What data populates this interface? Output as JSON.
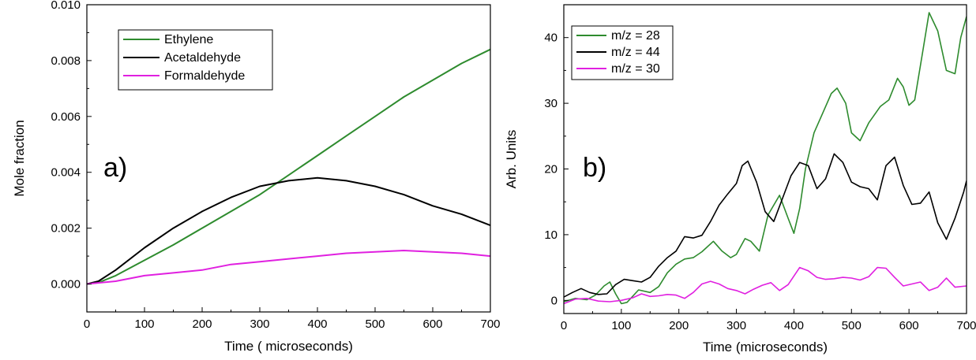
{
  "chart_data": [
    {
      "type": "line",
      "panel_label": "a)",
      "xlabel": "Time ( microseconds)",
      "ylabel": "Mole fraction",
      "xlim": [
        0,
        700
      ],
      "ylim": [
        -0.001,
        0.01
      ],
      "x_ticks": [
        0,
        100,
        200,
        300,
        400,
        500,
        600,
        700
      ],
      "y_ticks": [
        0.0,
        0.002,
        0.004,
        0.006,
        0.008,
        0.01
      ],
      "x_tick_labels": [
        "0",
        "100",
        "200",
        "300",
        "400",
        "500",
        "600",
        "700"
      ],
      "y_tick_labels": [
        "0.000",
        "0.002",
        "0.004",
        "0.006",
        "0.008",
        "0.010"
      ],
      "grid": false,
      "legend_position": "top-left",
      "series": [
        {
          "name": "Ethylene",
          "color": "#2e8b2e",
          "x": [
            0,
            20,
            50,
            100,
            150,
            200,
            250,
            300,
            350,
            400,
            450,
            500,
            550,
            600,
            650,
            700
          ],
          "y": [
            0.0,
            5e-05,
            0.0003,
            0.00085,
            0.0014,
            0.002,
            0.0026,
            0.0032,
            0.0039,
            0.0046,
            0.0053,
            0.006,
            0.0067,
            0.0073,
            0.0079,
            0.0084
          ]
        },
        {
          "name": "Acetaldehyde",
          "color": "#000000",
          "x": [
            0,
            20,
            50,
            100,
            150,
            200,
            250,
            300,
            350,
            400,
            450,
            500,
            550,
            600,
            650,
            700
          ],
          "y": [
            0.0,
            0.0001,
            0.0005,
            0.0013,
            0.002,
            0.0026,
            0.0031,
            0.0035,
            0.0037,
            0.0038,
            0.0037,
            0.0035,
            0.0032,
            0.0028,
            0.0025,
            0.0021
          ]
        },
        {
          "name": "Formaldehyde",
          "color": "#e020e0",
          "x": [
            0,
            50,
            100,
            150,
            200,
            250,
            300,
            350,
            400,
            450,
            500,
            550,
            600,
            650,
            700
          ],
          "y": [
            0.0,
            0.0001,
            0.0003,
            0.0004,
            0.0005,
            0.0007,
            0.0008,
            0.0009,
            0.001,
            0.0011,
            0.00115,
            0.0012,
            0.00115,
            0.0011,
            0.001
          ]
        }
      ]
    },
    {
      "type": "line",
      "panel_label": "b)",
      "xlabel": "Time (microseconds)",
      "ylabel": "Arb. Units",
      "xlim": [
        0,
        700
      ],
      "ylim": [
        -2,
        45
      ],
      "x_ticks": [
        0,
        100,
        200,
        300,
        400,
        500,
        600,
        700
      ],
      "y_ticks": [
        0,
        10,
        20,
        30,
        40
      ],
      "x_tick_labels": [
        "0",
        "100",
        "200",
        "300",
        "400",
        "500",
        "600",
        "700"
      ],
      "y_tick_labels": [
        "0",
        "10",
        "20",
        "30",
        "40"
      ],
      "grid": false,
      "legend_position": "top-left",
      "series": [
        {
          "name": "m/z = 28",
          "color": "#2e8b2e",
          "x": [
            0,
            20,
            40,
            55,
            70,
            80,
            90,
            100,
            110,
            130,
            150,
            165,
            180,
            195,
            210,
            225,
            240,
            260,
            275,
            290,
            300,
            315,
            325,
            340,
            355,
            375,
            390,
            400,
            410,
            420,
            435,
            450,
            465,
            475,
            490,
            500,
            515,
            530,
            550,
            565,
            580,
            590,
            600,
            610,
            625,
            635,
            650,
            665,
            680,
            690,
            700
          ],
          "y": [
            -0.2,
            0.3,
            0.1,
            0.8,
            2.2,
            2.8,
            1.0,
            -0.5,
            -0.3,
            1.6,
            1.2,
            2.1,
            4.2,
            5.5,
            6.3,
            6.5,
            7.4,
            9.0,
            7.5,
            6.5,
            7.0,
            9.4,
            9.0,
            7.5,
            13.0,
            16.0,
            12.5,
            10.2,
            14.0,
            20.0,
            25.5,
            28.5,
            31.5,
            32.3,
            30.0,
            25.5,
            24.3,
            27.0,
            29.5,
            30.5,
            33.8,
            32.5,
            29.7,
            30.5,
            38.5,
            43.8,
            41.0,
            35.0,
            34.5,
            40.0,
            43.2
          ]
        },
        {
          "name": "m/z = 44",
          "color": "#000000",
          "x": [
            0,
            15,
            30,
            45,
            60,
            75,
            90,
            105,
            120,
            135,
            150,
            165,
            180,
            195,
            210,
            225,
            240,
            255,
            270,
            285,
            300,
            310,
            320,
            335,
            350,
            365,
            380,
            395,
            410,
            425,
            440,
            455,
            470,
            485,
            500,
            515,
            530,
            545,
            560,
            575,
            590,
            605,
            620,
            635,
            650,
            665,
            680,
            695,
            700
          ],
          "y": [
            0.5,
            1.2,
            1.8,
            1.2,
            0.9,
            1.0,
            2.4,
            3.2,
            3.0,
            2.8,
            3.5,
            5.2,
            6.5,
            7.5,
            9.7,
            9.5,
            9.9,
            12.0,
            14.5,
            16.2,
            17.8,
            20.5,
            21.2,
            18.0,
            13.5,
            12.0,
            15.5,
            19.0,
            21.0,
            20.5,
            17.0,
            18.5,
            22.3,
            21.0,
            18.0,
            17.3,
            17.0,
            15.3,
            20.5,
            21.8,
            17.5,
            14.6,
            14.8,
            16.5,
            11.8,
            9.3,
            12.5,
            16.5,
            18.2
          ]
        },
        {
          "name": "m/z = 30",
          "color": "#e020e0",
          "x": [
            0,
            20,
            40,
            60,
            80,
            100,
            120,
            135,
            150,
            165,
            180,
            195,
            210,
            225,
            240,
            255,
            270,
            285,
            300,
            315,
            330,
            345,
            360,
            375,
            390,
            410,
            425,
            440,
            455,
            470,
            485,
            500,
            515,
            530,
            545,
            560,
            575,
            590,
            605,
            620,
            635,
            650,
            665,
            680,
            700
          ],
          "y": [
            -0.5,
            0.2,
            0.3,
            -0.1,
            -0.2,
            0.0,
            0.4,
            1.0,
            0.6,
            0.7,
            0.9,
            0.8,
            0.3,
            1.2,
            2.5,
            2.9,
            2.5,
            1.8,
            1.5,
            1.0,
            1.7,
            2.3,
            2.7,
            1.5,
            2.4,
            5.0,
            4.5,
            3.5,
            3.2,
            3.3,
            3.5,
            3.4,
            3.1,
            3.6,
            5.0,
            4.9,
            3.5,
            2.2,
            2.5,
            2.8,
            1.5,
            2.0,
            3.4,
            2.0,
            2.2
          ]
        }
      ]
    }
  ]
}
